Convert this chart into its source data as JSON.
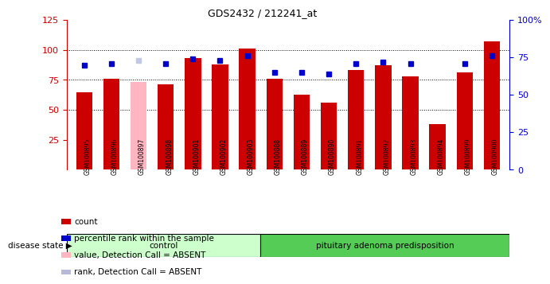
{
  "title": "GDS2432 / 212241_at",
  "samples": [
    "GSM100895",
    "GSM100896",
    "GSM100897",
    "GSM100898",
    "GSM100901",
    "GSM100902",
    "GSM100903",
    "GSM100888",
    "GSM100889",
    "GSM100890",
    "GSM100891",
    "GSM100892",
    "GSM100893",
    "GSM100894",
    "GSM100899",
    "GSM100900"
  ],
  "bar_values": [
    65,
    76,
    73,
    71,
    93,
    88,
    101,
    76,
    63,
    56,
    83,
    87,
    78,
    38,
    81,
    107
  ],
  "bar_colors": [
    "#cc0000",
    "#cc0000",
    "#ffb6c1",
    "#cc0000",
    "#cc0000",
    "#cc0000",
    "#cc0000",
    "#cc0000",
    "#cc0000",
    "#cc0000",
    "#cc0000",
    "#cc0000",
    "#cc0000",
    "#cc0000",
    "#cc0000",
    "#cc0000"
  ],
  "dot_values": [
    70,
    71,
    73,
    71,
    74,
    73,
    76,
    65,
    65,
    64,
    71,
    72,
    71,
    null,
    71,
    76
  ],
  "dot_colors": [
    "#0000cc",
    "#0000cc",
    "#c0c8e8",
    "#0000cc",
    "#0000cc",
    "#0000cc",
    "#0000cc",
    "#0000cc",
    "#0000cc",
    "#0000cc",
    "#0000cc",
    "#0000cc",
    "#0000cc",
    null,
    "#0000cc",
    "#0000cc"
  ],
  "control_count": 7,
  "total_count": 16,
  "control_label": "control",
  "disease_label": "pituitary adenoma predisposition",
  "disease_state_label": "disease state",
  "ylim_left": [
    0,
    125
  ],
  "ylim_right": [
    0,
    100
  ],
  "yticks_left": [
    25,
    50,
    75,
    100,
    125
  ],
  "yticks_right": [
    0,
    25,
    50,
    75,
    100
  ],
  "ytick_right_labels": [
    "0",
    "25",
    "50",
    "75",
    "100%"
  ],
  "grid_values": [
    50,
    75,
    100
  ],
  "left_axis_color": "#cc0000",
  "right_axis_color": "#0000cc",
  "plot_bg_color": "#ffffff",
  "xtick_bg_color": "#d3d3d3",
  "control_bg_light": "#ccffcc",
  "control_bg_dark": "#66cc66",
  "disease_bg": "#55cc55",
  "legend_items": [
    {
      "label": "count",
      "color": "#cc0000"
    },
    {
      "label": "percentile rank within the sample",
      "color": "#0000cc"
    },
    {
      "label": "value, Detection Call = ABSENT",
      "color": "#ffb6c1"
    },
    {
      "label": "rank, Detection Call = ABSENT",
      "color": "#b8b8d8"
    }
  ]
}
